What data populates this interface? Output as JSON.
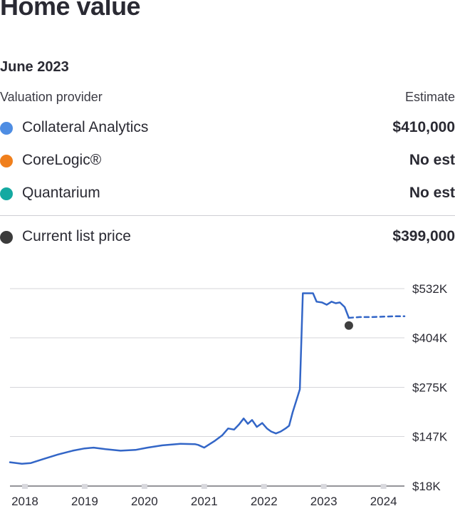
{
  "header": {
    "title": "Home value",
    "date": "June 2023"
  },
  "table": {
    "provider_header": "Valuation provider",
    "estimate_header": "Estimate",
    "rows": [
      {
        "label": "Collateral Analytics",
        "value": "$410,000",
        "color": "#4e8de3"
      },
      {
        "label": "CoreLogic®",
        "value": "No est",
        "color": "#f07f1c"
      },
      {
        "label": "Quantarium",
        "value": "No est",
        "color": "#14a9a1"
      }
    ],
    "list_price": {
      "label": "Current list price",
      "value": "$399,000",
      "color": "#3b3b3b"
    }
  },
  "colors": {
    "line": "#3366c7",
    "grid": "#d6d6da",
    "marker": "#3f3f3f"
  },
  "chart_data": {
    "type": "line",
    "title": "",
    "xlabel": "",
    "ylabel": "",
    "y_ticks": [
      18,
      147,
      275,
      404,
      532
    ],
    "y_tick_labels": [
      "$18K",
      "$147K",
      "$275K",
      "$404K",
      "$532K"
    ],
    "ylim": [
      18,
      532
    ],
    "x_ticks": [
      2018,
      2019,
      2020,
      2021,
      2022,
      2023,
      2024
    ],
    "x_tick_labels": [
      "2018",
      "2019",
      "2020",
      "2021",
      "2022",
      "2023",
      "2024"
    ],
    "xlim": [
      2017.75,
      2024.35
    ],
    "series": [
      {
        "style": "solid",
        "x": [
          2017.75,
          2017.95,
          2018.1,
          2018.3,
          2018.55,
          2018.8,
          2019.0,
          2019.15,
          2019.35,
          2019.6,
          2019.85,
          2020.05,
          2020.3,
          2020.6,
          2020.85,
          2020.9,
          2021.0,
          2021.1,
          2021.18,
          2021.3,
          2021.4,
          2021.5,
          2021.58,
          2021.66,
          2021.73,
          2021.8,
          2021.88,
          2021.97,
          2022.05,
          2022.12,
          2022.2,
          2022.28,
          2022.36,
          2022.42,
          2022.48,
          2022.55,
          2022.6,
          2022.65,
          2022.82,
          2022.88,
          2022.97,
          2023.05,
          2023.13,
          2023.2,
          2023.27,
          2023.35,
          2023.42
        ],
        "y": [
          80,
          76,
          78,
          88,
          100,
          110,
          116,
          118,
          114,
          110,
          112,
          118,
          124,
          128,
          127,
          125,
          118,
          128,
          136,
          150,
          168,
          165,
          178,
          194,
          180,
          190,
          172,
          182,
          168,
          160,
          155,
          160,
          168,
          175,
          210,
          245,
          270,
          520,
          520,
          498,
          496,
          490,
          498,
          494,
          496,
          484,
          456
        ]
      },
      {
        "style": "dashed",
        "x": [
          2023.42,
          2023.6,
          2023.8,
          2024.0,
          2024.2,
          2024.35
        ],
        "y": [
          456,
          458,
          458,
          459,
          460,
          460
        ]
      }
    ],
    "marker": {
      "x": 2023.42,
      "y": 436
    },
    "grid": true,
    "legend": "none"
  }
}
